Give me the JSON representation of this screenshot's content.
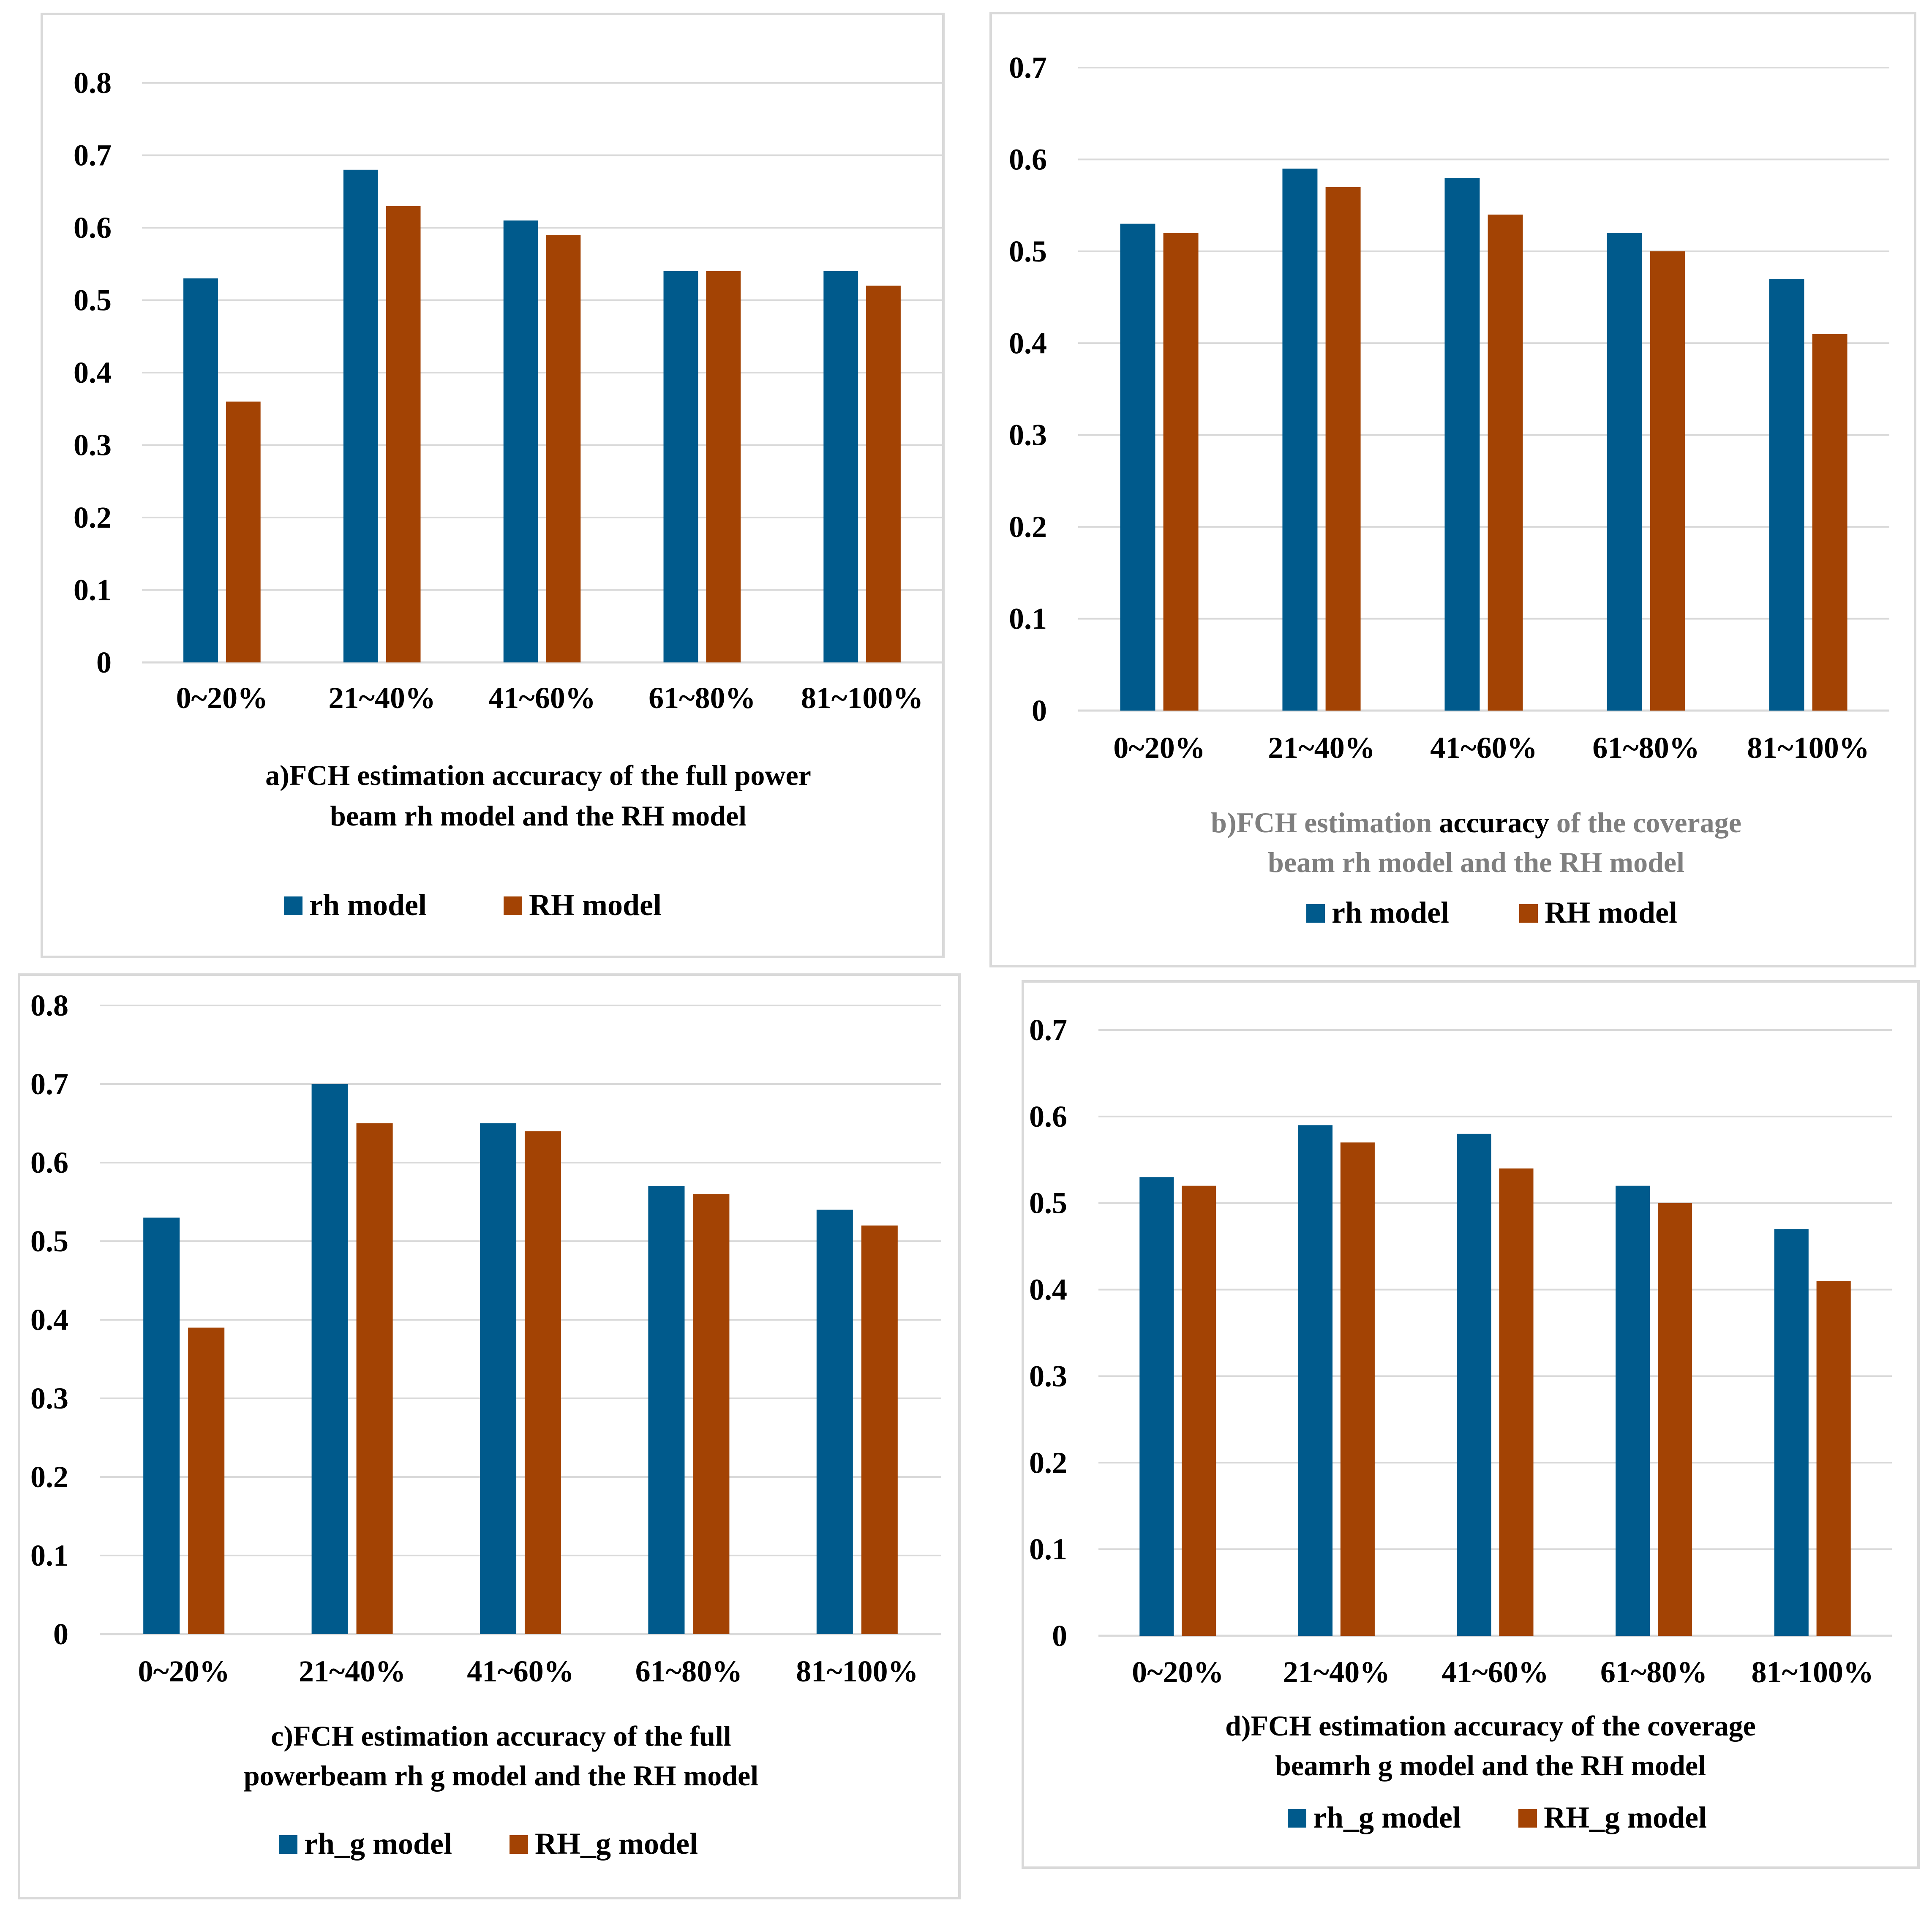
{
  "colors": {
    "series1": "#005a8c",
    "series2": "#a34304",
    "grid": "#d9d9d9",
    "caption_gray": "#7f7f7f",
    "text": "#000000"
  },
  "chart_data": [
    {
      "id": "a",
      "type": "bar",
      "categories": [
        "0~20%",
        "21~40%",
        "41~60%",
        "61~80%",
        "81~100%"
      ],
      "series": [
        {
          "name": "rh model",
          "values": [
            0.53,
            0.68,
            0.61,
            0.54,
            0.54
          ]
        },
        {
          "name": "RH model",
          "values": [
            0.36,
            0.63,
            0.59,
            0.54,
            0.52
          ]
        }
      ],
      "yticks": [
        "0",
        "0.1",
        "0.2",
        "0.3",
        "0.4",
        "0.5",
        "0.6",
        "0.7",
        "0.8"
      ],
      "ylim": [
        0,
        0.8
      ],
      "title_lines": [
        "a)FCH estimation accuracy of the full power",
        "beam rh model and the RH model"
      ],
      "legend": [
        "rh model",
        "RH model"
      ]
    },
    {
      "id": "b",
      "type": "bar",
      "categories": [
        "0~20%",
        "21~40%",
        "41~60%",
        "61~80%",
        "81~100%"
      ],
      "series": [
        {
          "name": "rh model",
          "values": [
            0.53,
            0.59,
            0.58,
            0.52,
            0.47
          ]
        },
        {
          "name": "RH model",
          "values": [
            0.52,
            0.57,
            0.54,
            0.5,
            0.41
          ]
        }
      ],
      "yticks": [
        "0",
        "0.1",
        "0.2",
        "0.3",
        "0.4",
        "0.5",
        "0.6",
        "0.7"
      ],
      "ylim": [
        0,
        0.7
      ],
      "title_parts": [
        "b)FCH estimation ",
        "accuracy",
        " of the coverage"
      ],
      "title_line2": "beam rh model and the RH model",
      "legend": [
        "rh model",
        "RH model"
      ]
    },
    {
      "id": "c",
      "type": "bar",
      "categories": [
        "0~20%",
        "21~40%",
        "41~60%",
        "61~80%",
        "81~100%"
      ],
      "series": [
        {
          "name": "rh_g model",
          "values": [
            0.53,
            0.7,
            0.65,
            0.57,
            0.54
          ]
        },
        {
          "name": "RH_g model",
          "values": [
            0.39,
            0.65,
            0.64,
            0.56,
            0.52
          ]
        }
      ],
      "yticks": [
        "0",
        "0.1",
        "0.2",
        "0.3",
        "0.4",
        "0.5",
        "0.6",
        "0.7",
        "0.8"
      ],
      "ylim": [
        0,
        0.8
      ],
      "title_lines": [
        "c)FCH estimation accuracy of the full",
        "powerbeam rh g model and the RH model"
      ],
      "legend": [
        "rh_g model",
        "RH_g model"
      ]
    },
    {
      "id": "d",
      "type": "bar",
      "categories": [
        "0~20%",
        "21~40%",
        "41~60%",
        "61~80%",
        "81~100%"
      ],
      "series": [
        {
          "name": "rh_g model",
          "values": [
            0.53,
            0.59,
            0.58,
            0.52,
            0.47
          ]
        },
        {
          "name": "RH_g model",
          "values": [
            0.52,
            0.57,
            0.54,
            0.5,
            0.41
          ]
        }
      ],
      "yticks": [
        "0",
        "0.1",
        "0.2",
        "0.3",
        "0.4",
        "0.5",
        "0.6",
        "0.7"
      ],
      "ylim": [
        0,
        0.7
      ],
      "title_lines": [
        "d)FCH estimation accuracy of the coverage",
        "beamrh g model and the RH model"
      ],
      "legend": [
        "rh_g model",
        "RH_g model"
      ]
    }
  ]
}
